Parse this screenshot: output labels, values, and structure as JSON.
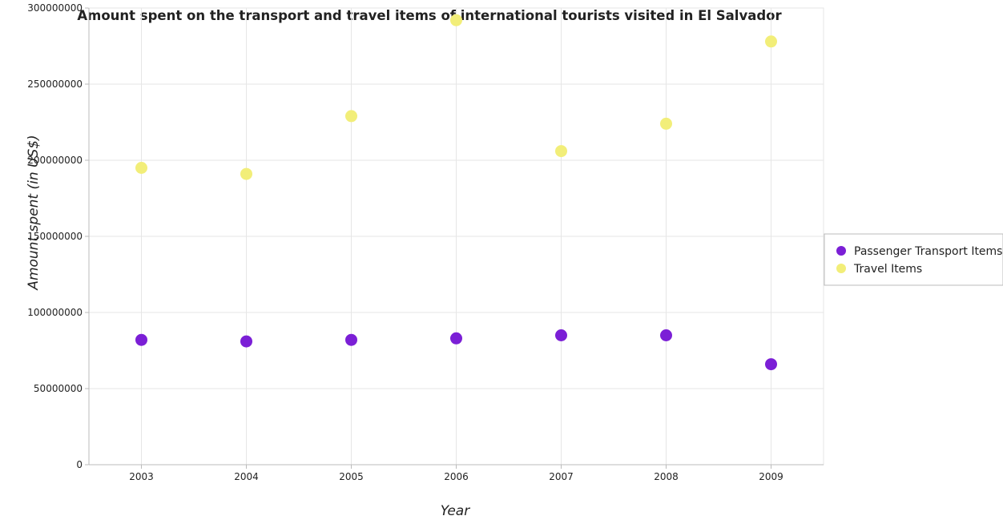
{
  "colors": {
    "passenger": "#7b1fd6",
    "travel": "#f2ee79",
    "axis": "#bbbbbb",
    "grid": "#e6e6e6"
  },
  "chart_data": {
    "type": "scatter",
    "title": "Amount spent on the transport and travel items of international tourists visited in El Salvador",
    "xlabel": "Year",
    "ylabel": "Amount spent (in US$)",
    "x": [
      "2003",
      "2004",
      "2005",
      "2006",
      "2007",
      "2008",
      "2009"
    ],
    "ylim": [
      0,
      300000000
    ],
    "yticks": [
      {
        "value": 0,
        "label": "0"
      },
      {
        "value": 50000000,
        "label": "50000000"
      },
      {
        "value": 100000000,
        "label": "100000000"
      },
      {
        "value": 150000000,
        "label": "150000000"
      },
      {
        "value": 200000000,
        "label": "200000000"
      },
      {
        "value": 250000000,
        "label": "250000000"
      },
      {
        "value": 300000000,
        "label": "300000000"
      }
    ],
    "series": [
      {
        "name": "Passenger Transport Items",
        "color_key": "passenger",
        "values": [
          82000000,
          81000000,
          82000000,
          83000000,
          85000000,
          85000000,
          66000000
        ]
      },
      {
        "name": "Travel Items",
        "color_key": "travel",
        "values": [
          195000000,
          191000000,
          229000000,
          292000000,
          206000000,
          224000000,
          278000000
        ]
      }
    ],
    "grid": true,
    "legend": "right"
  }
}
